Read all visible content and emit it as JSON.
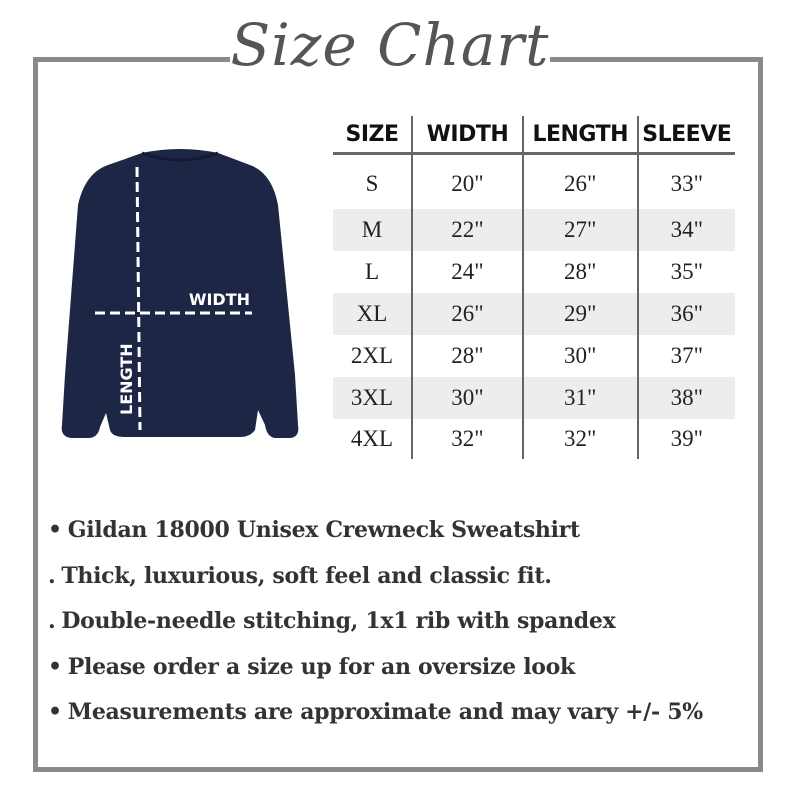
{
  "title": "Size Chart",
  "diagram": {
    "width_label": "WIDTH",
    "length_label": "LENGTH",
    "garment_color": "#1e2645"
  },
  "table": {
    "headers": [
      "SIZE",
      "WIDTH",
      "LENGTH",
      "SLEEVE"
    ],
    "rows": [
      [
        "S",
        "20\"",
        "26\"",
        "33\""
      ],
      [
        "M",
        "22\"",
        "27\"",
        "34\""
      ],
      [
        "L",
        "24\"",
        "28\"",
        "35\""
      ],
      [
        "XL",
        "26\"",
        "29\"",
        "36\""
      ],
      [
        "2XL",
        "28\"",
        "30\"",
        "37\""
      ],
      [
        "3XL",
        "30\"",
        "31\"",
        "38\""
      ],
      [
        "4XL",
        "32\"",
        "32\"",
        "39\""
      ]
    ]
  },
  "notes": [
    {
      "bullet": "•",
      "text": "Gildan 18000 Unisex Crewneck Sweatshirt"
    },
    {
      "bullet": ".",
      "text": "Thick, luxurious, soft feel and classic fit."
    },
    {
      "bullet": ".",
      "text": "Double-needle stitching, 1x1 rib with spandex"
    },
    {
      "bullet": "•",
      "text": "Please order a size up for an oversize look"
    },
    {
      "bullet": "•",
      "text": "Measurements are approximate and may vary +/- 5%"
    }
  ]
}
